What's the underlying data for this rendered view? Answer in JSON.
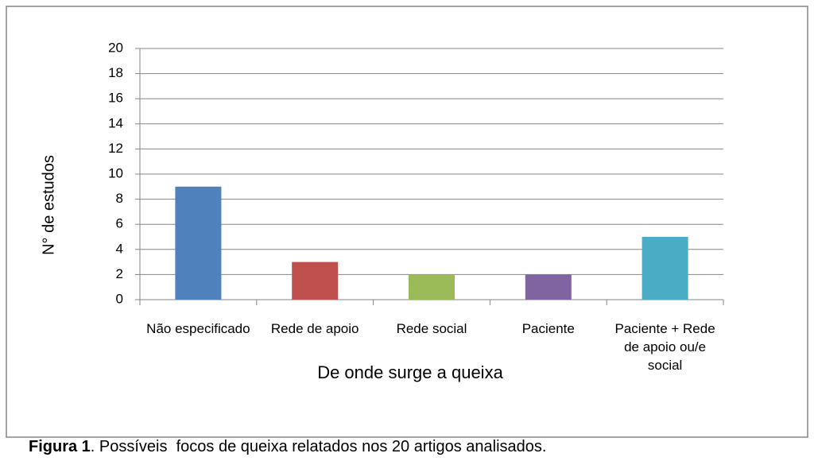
{
  "chart_data": {
    "type": "bar",
    "categories": [
      "Não especificado",
      "Rede de apoio",
      "Rede social",
      "Paciente",
      "Paciente + Rede de apoio ou/e social"
    ],
    "values": [
      9,
      3,
      2,
      2,
      5
    ],
    "colors": [
      "#4f81bd",
      "#c0504d",
      "#9bbb59",
      "#8064a2",
      "#4bacc6"
    ],
    "ylim": [
      0,
      20
    ],
    "yticks": [
      0,
      2,
      4,
      6,
      8,
      10,
      12,
      14,
      16,
      18,
      20
    ],
    "grid": true,
    "y_label": "N° de estudos",
    "x_label": "De onde surge a queixa"
  },
  "caption": {
    "label": "Figura 1",
    "text": ". Possíveis  focos de queixa relatados nos 20 artigos analisados."
  }
}
